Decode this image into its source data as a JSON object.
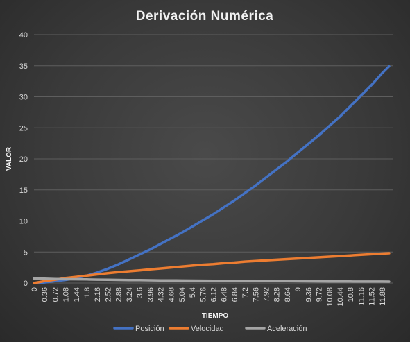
{
  "chart_data": {
    "type": "line",
    "title": "Derivación  Numérica",
    "xlabel": "TIEMPO",
    "ylabel": "VALOR",
    "ylim": [
      0,
      40
    ],
    "yticks": [
      0,
      5,
      10,
      15,
      20,
      25,
      30,
      35,
      40
    ],
    "xticks": [
      "0",
      "0.36",
      "0.72",
      "1.08",
      "1.44",
      "1.8",
      "2.16",
      "2.52",
      "2.88",
      "3.24",
      "3.6",
      "3.96",
      "4.32",
      "4.68",
      "5.04",
      "5.4",
      "5.76",
      "6.12",
      "6.48",
      "6.84",
      "7.2",
      "7.56",
      "7.92",
      "8.28",
      "8.64",
      "9",
      "9.36",
      "9.72",
      "10.08",
      "10.44",
      "10.8",
      "11.16",
      "11.52",
      "11.88"
    ],
    "grid": true,
    "legend_position": "bottom",
    "series": [
      {
        "name": "Posición",
        "color": "#4472c4",
        "x": [
          0,
          0.36,
          0.72,
          1.08,
          1.44,
          1.8,
          2.16,
          2.52,
          2.88,
          3.24,
          3.6,
          3.96,
          4.32,
          4.68,
          5.04,
          5.4,
          5.76,
          6.12,
          6.48,
          6.84,
          7.2,
          7.56,
          7.92,
          8.28,
          8.64,
          9,
          9.36,
          9.72,
          10.08,
          10.44,
          10.8,
          11.16,
          11.52,
          11.88,
          12.12
        ],
        "values": [
          0,
          0.1,
          0.3,
          0.5,
          0.8,
          1.2,
          1.7,
          2.3,
          3.0,
          3.8,
          4.6,
          5.4,
          6.3,
          7.2,
          8.1,
          9.1,
          10.1,
          11.1,
          12.2,
          13.3,
          14.5,
          15.7,
          17.0,
          18.3,
          19.6,
          21.0,
          22.4,
          23.8,
          25.3,
          26.8,
          28.5,
          30.2,
          31.9,
          33.8,
          34.9
        ]
      },
      {
        "name": "Velocidad",
        "color": "#ed7d31",
        "x": [
          0,
          0.36,
          0.72,
          1.08,
          1.44,
          1.8,
          2.16,
          2.52,
          2.88,
          3.24,
          3.6,
          3.96,
          4.32,
          4.68,
          5.04,
          5.4,
          5.76,
          6.12,
          6.48,
          6.84,
          7.2,
          7.56,
          7.92,
          8.28,
          8.64,
          9,
          9.36,
          9.72,
          10.08,
          10.44,
          10.8,
          11.16,
          11.52,
          11.88,
          12.12
        ],
        "values": [
          0,
          0.3,
          0.55,
          0.8,
          1.0,
          1.2,
          1.4,
          1.6,
          1.75,
          1.9,
          2.05,
          2.2,
          2.35,
          2.5,
          2.65,
          2.8,
          2.95,
          3.05,
          3.2,
          3.3,
          3.45,
          3.55,
          3.65,
          3.75,
          3.85,
          3.95,
          4.05,
          4.15,
          4.25,
          4.35,
          4.45,
          4.55,
          4.65,
          4.75,
          4.8
        ]
      },
      {
        "name": "Aceleración",
        "color": "#a5a5a5",
        "x": [
          0,
          0.36,
          0.72,
          1.08,
          1.44,
          1.8,
          2.16,
          2.52,
          2.88,
          3.24,
          3.6,
          3.96,
          4.32,
          4.68,
          5.04,
          5.4,
          5.76,
          6.12,
          6.48,
          6.84,
          7.2,
          7.56,
          7.92,
          8.28,
          8.64,
          9,
          9.36,
          9.72,
          10.08,
          10.44,
          10.8,
          11.16,
          11.52,
          11.88,
          12.12
        ],
        "values": [
          0.75,
          0.7,
          0.65,
          0.62,
          0.6,
          0.58,
          0.55,
          0.53,
          0.5,
          0.48,
          0.47,
          0.45,
          0.43,
          0.42,
          0.4,
          0.39,
          0.38,
          0.37,
          0.36,
          0.35,
          0.34,
          0.33,
          0.32,
          0.31,
          0.3,
          0.29,
          0.28,
          0.27,
          0.26,
          0.26,
          0.25,
          0.24,
          0.24,
          0.23,
          0.22
        ]
      }
    ]
  }
}
